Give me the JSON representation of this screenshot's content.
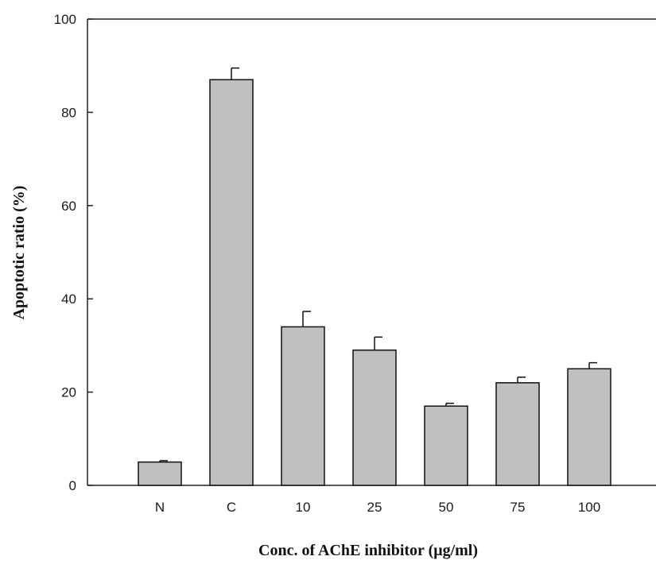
{
  "chart_data": {
    "type": "bar",
    "title": "",
    "xlabel": "Conc. of AChE inhibitor (μg/ml)",
    "ylabel": "Apoptotic ratio (%)",
    "categories": [
      "N",
      "C",
      "10",
      "25",
      "50",
      "75",
      "100"
    ],
    "values": [
      5,
      87,
      34,
      29,
      17,
      22,
      25
    ],
    "errors": [
      0.3,
      2.5,
      3.3,
      2.8,
      0.6,
      1.2,
      1.3
    ],
    "ylim": [
      0,
      100
    ],
    "yticks": [
      0,
      20,
      40,
      60,
      80,
      100
    ],
    "ytick_labels": [
      "0",
      "20",
      "40",
      "60",
      "80",
      "100"
    ],
    "grid": false,
    "legend": "none",
    "colors": {
      "bar_fill": "#c0c0c0",
      "bar_stroke": "#111111",
      "axis": "#222222"
    }
  }
}
